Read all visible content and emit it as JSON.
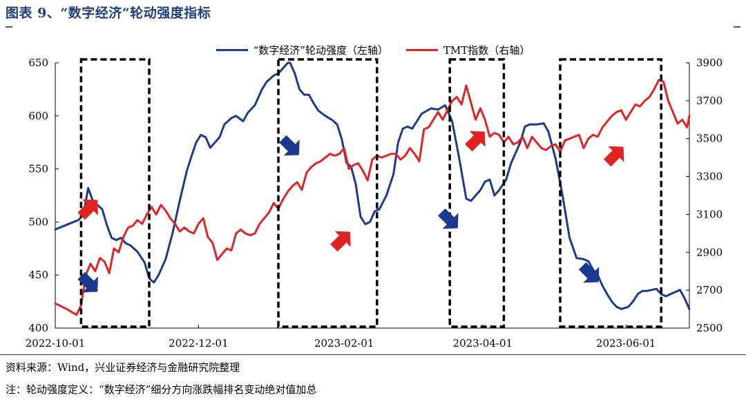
{
  "title": "图表 9、“数字经济”轮动强度指标",
  "source_note": "资料来源：Wind，兴业证券经济与金融研究院整理",
  "definition_note": "注：轮动强度定义：“数字经济”细分方向涨跌幅排名变动绝对值加总",
  "colors": {
    "left_series": "#1a3a8f",
    "right_series": "#e02424",
    "title": "#1f3f7a"
  },
  "chart_data": {
    "type": "line",
    "legend_position": "top-center",
    "grid": false,
    "x_ticks": [
      "2022-10-01",
      "2022-12-01",
      "2023-02-01",
      "2023-04-01",
      "2023-06-01"
    ],
    "x_range": [
      0,
      270
    ],
    "x_tick_positions": [
      0,
      61,
      123,
      182,
      243
    ],
    "y_left": {
      "range": [
        400,
        650
      ],
      "ticks": [
        "400",
        "450",
        "500",
        "550",
        "600",
        "650"
      ]
    },
    "y_right": {
      "range": [
        2500,
        3900
      ],
      "ticks": [
        "2500",
        "2700",
        "2900",
        "3100",
        "3300",
        "3500",
        "3700",
        "3900"
      ]
    },
    "series": [
      {
        "name": "“数字经济”轮动强度（左轴）",
        "axis": "left",
        "x": [
          0,
          10,
          12,
          14,
          16,
          20,
          22,
          24,
          26,
          28,
          30,
          32,
          35,
          38,
          40,
          42,
          44,
          47,
          50,
          53,
          56,
          58,
          60,
          62,
          64,
          66,
          68,
          70,
          72,
          75,
          77,
          80,
          82,
          85,
          88,
          90,
          93,
          95,
          97,
          99,
          100,
          102,
          104,
          106,
          108,
          110,
          112,
          115,
          118,
          120,
          122,
          124,
          126,
          128,
          130,
          132,
          134,
          136,
          138,
          141,
          144,
          146,
          148,
          150,
          152,
          154,
          156,
          160,
          163,
          166,
          169,
          172,
          175,
          177,
          179,
          181,
          183,
          185,
          187,
          189,
          192,
          194,
          196,
          198,
          200,
          202,
          205,
          208,
          210,
          213,
          216,
          219,
          222,
          225,
          227,
          229,
          231,
          233,
          235,
          237,
          239,
          241,
          244,
          246,
          248,
          250,
          252,
          254,
          256,
          258,
          260,
          262,
          264,
          266,
          268,
          270
        ],
        "values": [
          493,
          502,
          507,
          532,
          520,
          512,
          497,
          485,
          483,
          485,
          480,
          478,
          472,
          462,
          447,
          443,
          450,
          465,
          490,
          520,
          548,
          562,
          575,
          582,
          580,
          570,
          575,
          580,
          592,
          598,
          600,
          595,
          603,
          610,
          625,
          632,
          638,
          640,
          645,
          650,
          650,
          640,
          625,
          620,
          620,
          612,
          605,
          600,
          596,
          592,
          578,
          556,
          552,
          535,
          505,
          498,
          500,
          510,
          512,
          525,
          545,
          575,
          588,
          590,
          588,
          595,
          602,
          607,
          606,
          610,
          595,
          560,
          522,
          520,
          525,
          530,
          538,
          540,
          525,
          530,
          540,
          555,
          565,
          575,
          590,
          592,
          592,
          593,
          585,
          560,
          525,
          485,
          466,
          465,
          463,
          455,
          450,
          440,
          432,
          425,
          420,
          418,
          420,
          425,
          432,
          435,
          435,
          436,
          437,
          432,
          430,
          432,
          434,
          436,
          428,
          418
        ]
      },
      {
        "name": "TMT指数（右轴）",
        "axis": "right",
        "x": [
          0,
          5,
          9,
          11,
          13,
          15,
          17,
          19,
          21,
          23,
          25,
          27,
          29,
          31,
          33,
          35,
          37,
          39,
          41,
          43,
          45,
          47,
          49,
          51,
          53,
          55,
          57,
          59,
          61,
          63,
          65,
          67,
          69,
          71,
          73,
          75,
          77,
          79,
          81,
          83,
          85,
          87,
          89,
          91,
          93,
          95,
          97,
          99,
          101,
          103,
          105,
          107,
          109,
          111,
          113,
          115,
          117,
          119,
          121,
          123,
          125,
          127,
          129,
          131,
          133,
          135,
          137,
          139,
          141,
          143,
          145,
          147,
          149,
          151,
          153,
          155,
          157,
          159,
          161,
          163,
          165,
          167,
          169,
          171,
          173,
          175,
          177,
          179,
          181,
          183,
          185,
          187,
          189,
          191,
          193,
          195,
          197,
          199,
          201,
          203,
          205,
          207,
          209,
          211,
          213,
          215,
          217,
          219,
          221,
          223,
          225,
          227,
          229,
          231,
          233,
          235,
          237,
          239,
          241,
          243,
          245,
          247,
          249,
          251,
          253,
          255,
          257,
          259,
          261,
          263,
          265,
          267,
          269,
          270
        ],
        "values": [
          2630,
          2600,
          2570,
          2620,
          2780,
          2840,
          2800,
          2870,
          2850,
          2790,
          2920,
          2900,
          2980,
          3030,
          3040,
          3070,
          3050,
          3100,
          3140,
          3100,
          3150,
          3120,
          3080,
          3050,
          3010,
          3030,
          3010,
          3000,
          3050,
          3080,
          2980,
          2950,
          2860,
          2890,
          2920,
          2910,
          3000,
          3020,
          3000,
          2990,
          3000,
          3050,
          3080,
          3110,
          3160,
          3130,
          3180,
          3220,
          3250,
          3270,
          3230,
          3320,
          3350,
          3370,
          3380,
          3400,
          3420,
          3410,
          3420,
          3450,
          3340,
          3360,
          3370,
          3330,
          3280,
          3390,
          3410,
          3400,
          3410,
          3420,
          3420,
          3390,
          3410,
          3450,
          3420,
          3380,
          3550,
          3560,
          3600,
          3640,
          3600,
          3650,
          3700,
          3720,
          3680,
          3780,
          3690,
          3600,
          3660,
          3600,
          3510,
          3530,
          3520,
          3480,
          3510,
          3470,
          3480,
          3510,
          3450,
          3510,
          3480,
          3450,
          3440,
          3460,
          3470,
          3430,
          3490,
          3500,
          3510,
          3520,
          3450,
          3500,
          3520,
          3510,
          3560,
          3590,
          3620,
          3640,
          3650,
          3600,
          3640,
          3680,
          3670,
          3700,
          3720,
          3760,
          3810,
          3800,
          3700,
          3640,
          3580,
          3600,
          3560,
          3620
        ]
      }
    ],
    "highlight_boxes": [
      {
        "x0": 11,
        "x1": 40,
        "arrows": [
          "up",
          "down"
        ]
      },
      {
        "x0": 95,
        "x1": 137,
        "arrows": [
          "down",
          "up"
        ]
      },
      {
        "x0": 168,
        "x1": 191,
        "arrows": [
          "up",
          "down"
        ]
      },
      {
        "x0": 215,
        "x1": 258,
        "arrows": [
          "down",
          "up"
        ]
      }
    ]
  }
}
